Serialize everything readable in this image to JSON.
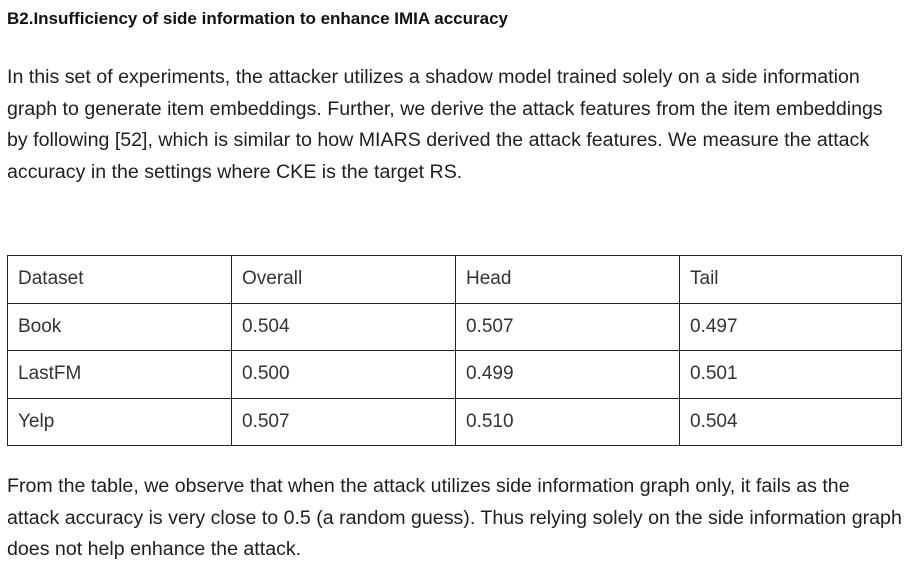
{
  "heading": "B2.Insufficiency of side information to enhance IMIA accuracy",
  "intro_paragraph": "In this set of experiments, the attacker utilizes a shadow model trained solely on a side information graph to generate item embeddings. Further, we derive the attack features from the item embeddings by following [52], which is similar to how MIARS derived the attack features. We measure the attack accuracy in the settings where CKE is the target RS.",
  "table": {
    "headers": [
      "Dataset",
      "Overall",
      "Head",
      "Tail"
    ],
    "rows": [
      [
        "Book",
        "0.504",
        "0.507",
        "0.497"
      ],
      [
        "LastFM",
        "0.500",
        "0.499",
        "0.501"
      ],
      [
        "Yelp",
        "0.507",
        "0.510",
        "0.504"
      ]
    ]
  },
  "conclusion_paragraph": "From the table, we observe that when the attack utilizes side information graph only, it fails as the attack accuracy is very close to 0.5 (a random guess). Thus relying solely on the side information graph does not help enhance the attack."
}
